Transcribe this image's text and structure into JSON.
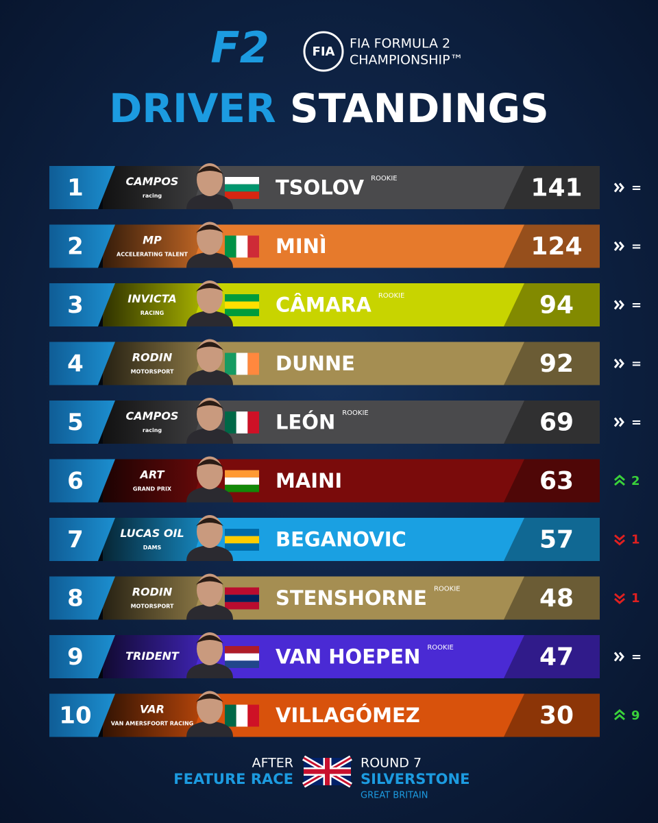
{
  "header": {
    "logo": "F2",
    "badge": "FIA",
    "org_line1": "FIA FORMULA 2",
    "org_line2": "CHAMPIONSHIP™"
  },
  "title": {
    "part1": "DRIVER",
    "part2": "STANDINGS"
  },
  "standings": [
    {
      "position": "1",
      "team": [
        "CAMPOS",
        "racing"
      ],
      "driver": "TSOLOV",
      "rookie": "ROOKIE",
      "points": "141",
      "change": "=",
      "trend": "same",
      "color": "#4a4a4c",
      "flag": [
        "#ffffff",
        "#00966e",
        "#d62612"
      ],
      "flag_dir": "h"
    },
    {
      "position": "2",
      "team": [
        "MP",
        "ACCELERATING TALENT"
      ],
      "driver": "MINÌ",
      "points": "124",
      "change": "=",
      "trend": "same",
      "color": "#e67a2c",
      "flag": [
        "#009246",
        "#ffffff",
        "#ce2b37"
      ],
      "flag_dir": "v"
    },
    {
      "position": "3",
      "team": [
        "INVICTA",
        "RACING"
      ],
      "driver": "CÂMARA",
      "rookie": "ROOKIE",
      "points": "94",
      "change": "=",
      "trend": "same",
      "color": "#c8d400",
      "flag": [
        "#009c3b",
        "#ffdf00",
        "#009c3b"
      ],
      "flag_dir": "h"
    },
    {
      "position": "4",
      "team": [
        "RODIN",
        "MOTORSPORT"
      ],
      "driver": "DUNNE",
      "points": "92",
      "change": "=",
      "trend": "same",
      "color": "#a58e52",
      "flag": [
        "#169b62",
        "#ffffff",
        "#ff883e"
      ],
      "flag_dir": "v"
    },
    {
      "position": "5",
      "team": [
        "CAMPOS",
        "racing"
      ],
      "driver": "LEÓN",
      "rookie": "ROOKIE",
      "points": "69",
      "change": "=",
      "trend": "same",
      "color": "#4a4a4c",
      "flag": [
        "#006847",
        "#ffffff",
        "#ce1126"
      ],
      "flag_dir": "v"
    },
    {
      "position": "6",
      "team": [
        "ART",
        "GRAND PRIX"
      ],
      "driver": "MAINI",
      "points": "63",
      "change": "2",
      "trend": "up",
      "color": "#7a0b0b",
      "flag": [
        "#ff9933",
        "#ffffff",
        "#138808"
      ],
      "flag_dir": "h"
    },
    {
      "position": "7",
      "team": [
        "LUCAS OIL",
        "DAMS"
      ],
      "driver": "BEGANOVIC",
      "points": "57",
      "change": "1",
      "trend": "down",
      "color": "#1aa0e2",
      "flag": [
        "#006aa7",
        "#fecc00",
        "#006aa7"
      ],
      "flag_dir": "h"
    },
    {
      "position": "8",
      "team": [
        "RODIN",
        "MOTORSPORT"
      ],
      "driver": "STENSHORNE",
      "rookie": "ROOKIE",
      "points": "48",
      "change": "1",
      "trend": "down",
      "color": "#a58e52",
      "flag": [
        "#ba0c2f",
        "#00205b",
        "#ba0c2f"
      ],
      "flag_dir": "h"
    },
    {
      "position": "9",
      "team": [
        "TRIDENT"
      ],
      "driver": "VAN HOEPEN",
      "rookie": "ROOKIE",
      "points": "47",
      "change": "=",
      "trend": "same",
      "color": "#4a2ad4",
      "flag": [
        "#ae1c28",
        "#ffffff",
        "#21468b"
      ],
      "flag_dir": "h"
    },
    {
      "position": "10",
      "team": [
        "VAR",
        "VAN AMERSFOORT RACING"
      ],
      "driver": "VILLAGÓMEZ",
      "points": "30",
      "change": "9",
      "trend": "up",
      "color": "#d8520c",
      "flag": [
        "#006847",
        "#ffffff",
        "#ce1126"
      ],
      "flag_dir": "v"
    }
  ],
  "footer": {
    "after": "AFTER",
    "session": "FEATURE RACE",
    "round": "ROUND 7",
    "venue": "SILVERSTONE",
    "country": "GREAT BRITAIN"
  }
}
